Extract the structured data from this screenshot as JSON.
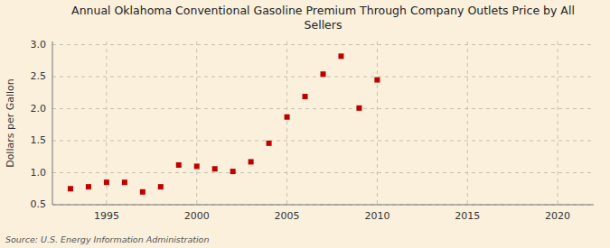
{
  "chart_data": {
    "type": "scatter",
    "title": "Annual Oklahoma Conventional Gasoline Premium Through Company Outlets Price by All\nSellers",
    "ylabel": "Dollars per Gallon",
    "annotations": [
      "Source: U.S. Energy Information Administration"
    ],
    "x": [
      1993,
      1994,
      1995,
      1996,
      1997,
      1998,
      1999,
      2000,
      2001,
      2002,
      2003,
      2004,
      2005,
      2006,
      2007,
      2008,
      2009,
      2010
    ],
    "values": [
      0.75,
      0.78,
      0.85,
      0.85,
      0.7,
      0.78,
      1.12,
      1.1,
      1.06,
      1.02,
      1.17,
      1.46,
      1.87,
      2.19,
      2.54,
      2.82,
      2.01,
      2.45
    ],
    "color": "#c00000",
    "marker": "square",
    "xlim": [
      1992,
      2022
    ],
    "ylim": [
      0.5,
      3.05
    ],
    "xticks": [
      1995,
      2000,
      2005,
      2010,
      2015,
      2020
    ],
    "yticks": [
      0.5,
      {
        "value": 1.0,
        "label": "1.0"
      },
      1.5,
      {
        "value": 2.0,
        "label": "2.0"
      },
      2.5,
      {
        "value": 3.0,
        "label": "3.0"
      }
    ],
    "grid": true
  }
}
